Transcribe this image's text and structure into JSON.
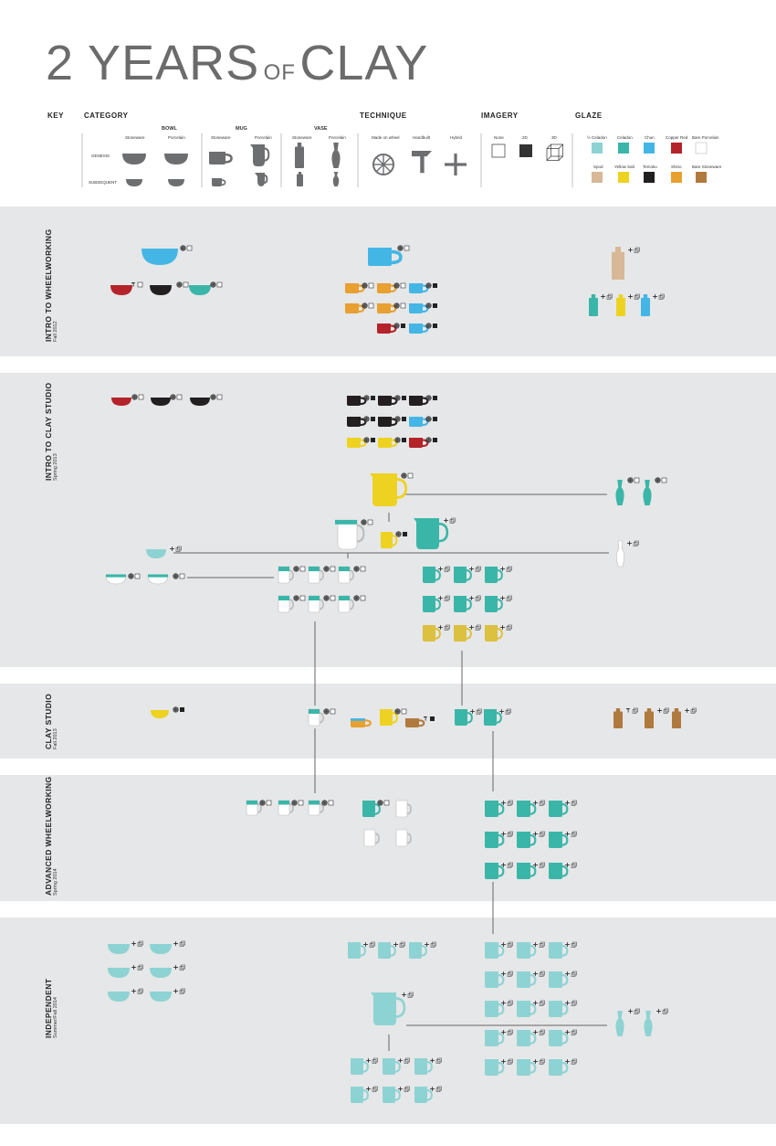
{
  "title": {
    "part1": "2 YEARS",
    "part2": "OF",
    "part3": "CLAY"
  },
  "key": {
    "label": "KEY",
    "category": "CATEGORY",
    "technique": "TECHNIQUE",
    "imagery": "IMAGERY",
    "glaze": "GLAZE",
    "bowl": "BOWL",
    "mug": "MUG",
    "vase": "VASE",
    "stoneware": "Stoneware",
    "porcelain": "Porcelain",
    "genesis": "GENESIS",
    "subsequent": "SUBSEQUENT",
    "made_on_wheel": "Made on wheel",
    "handbuilt": "Handbuilt",
    "hybrid": "Hybrid",
    "img_none": "None",
    "img_2d": "2D",
    "img_3d": "3D",
    "glazes": [
      {
        "name": "½ Celadon",
        "color": "#8ed3d3"
      },
      {
        "name": "Celadon",
        "color": "#3ab6a8"
      },
      {
        "name": "Chun",
        "color": "#44b6e6"
      },
      {
        "name": "Copper Red",
        "color": "#b5232a"
      },
      {
        "name": "Bare Porcelain",
        "color": "#ffffff"
      },
      {
        "name": "Spod",
        "color": "#d8b896"
      },
      {
        "name": "Yellow Salt",
        "color": "#eed222"
      },
      {
        "name": "Temoku",
        "color": "#231f20"
      },
      {
        "name": "Shino",
        "color": "#e8a030"
      },
      {
        "name": "Bare Stoneware",
        "color": "#b07a3e"
      }
    ]
  },
  "sections": [
    {
      "name": "INTRO TO WHEELWORKING",
      "date": "Fall 2012"
    },
    {
      "name": "INTRO TO CLAY STUDIO",
      "date": "Spring 2013"
    },
    {
      "name": "CLAY STUDIO",
      "date": "Fall 2013"
    },
    {
      "name": "ADVANCED WHEELWORKING",
      "date": "Spring 2014"
    },
    {
      "name": "INDEPENDENT",
      "date": "Summer/Fall 2014"
    }
  ],
  "colors": {
    "band": "#e6e7e8",
    "gray": "#6d6e70",
    "text": "#222222",
    "line": "#666666",
    "celadon": "#3ab6a8",
    "half_celadon": "#8ed3d3",
    "chun": "#44b6e6",
    "copper_red": "#b5232a",
    "porcelain": "#ffffff",
    "spod": "#d8b896",
    "yellow": "#eed222",
    "temoku": "#231f20",
    "shino": "#e8a030",
    "stoneware": "#b07a3e",
    "gold": "#dcc040"
  }
}
